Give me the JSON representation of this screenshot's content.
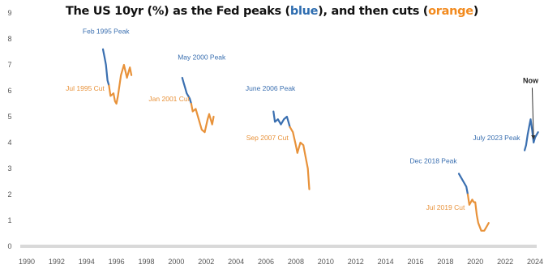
{
  "title": {
    "prefix": "The US 10yr (%) as the Fed peaks (",
    "blue_word": "blue",
    "middle": "), and then cuts (",
    "orange_word": "orange",
    "suffix": ")"
  },
  "colors": {
    "blue": "#3a6fb0",
    "orange": "#e8923a",
    "axis": "#d9d9d9",
    "text": "#555555"
  },
  "chart_data": {
    "type": "line",
    "title": "The US 10yr (%) as the Fed peaks (blue), and then cuts (orange)",
    "xlim": [
      1990,
      2024
    ],
    "ylim": [
      0,
      9
    ],
    "x_ticks": [
      "1990",
      "1992",
      "1994",
      "1996",
      "1998",
      "2000",
      "2002",
      "2004",
      "2006",
      "2008",
      "2010",
      "2012",
      "2014",
      "2016",
      "2018",
      "2020",
      "2022",
      "2024"
    ],
    "y_ticks": [
      "0",
      "1",
      "2",
      "3",
      "4",
      "5",
      "6",
      "7",
      "8",
      "9"
    ],
    "legend": "none",
    "grid": false,
    "series": [
      {
        "color": "blue",
        "x": [
          1995.1,
          1995.2,
          1995.3,
          1995.4,
          1995.5
        ],
        "y": [
          7.6,
          7.3,
          7.0,
          6.4,
          6.2
        ]
      },
      {
        "color": "orange",
        "x": [
          1995.5,
          1995.6,
          1995.8,
          1995.9,
          1996.0,
          1996.1,
          1996.3,
          1996.5,
          1996.7,
          1996.9,
          1997.0
        ],
        "y": [
          6.2,
          5.8,
          5.9,
          5.6,
          5.5,
          5.8,
          6.6,
          7.0,
          6.5,
          6.9,
          6.6
        ]
      },
      {
        "color": "blue",
        "x": [
          2000.4,
          2000.5,
          2000.6,
          2000.7,
          2000.9,
          2001.0
        ],
        "y": [
          6.5,
          6.3,
          6.1,
          5.9,
          5.7,
          5.5
        ]
      },
      {
        "color": "orange",
        "x": [
          2001.0,
          2001.1,
          2001.3,
          2001.5,
          2001.7,
          2001.9,
          2002.1,
          2002.2,
          2002.4,
          2002.5
        ],
        "y": [
          5.5,
          5.2,
          5.3,
          4.9,
          4.5,
          4.4,
          4.9,
          5.1,
          4.7,
          5.0
        ]
      },
      {
        "color": "blue",
        "x": [
          2006.5,
          2006.6,
          2006.8,
          2007.0,
          2007.2,
          2007.4,
          2007.6
        ],
        "y": [
          5.2,
          4.8,
          4.9,
          4.7,
          4.9,
          5.0,
          4.6
        ]
      },
      {
        "color": "orange",
        "x": [
          2007.6,
          2007.8,
          2008.0,
          2008.1,
          2008.3,
          2008.5,
          2008.6,
          2008.8,
          2008.9
        ],
        "y": [
          4.6,
          4.4,
          3.9,
          3.6,
          4.0,
          3.9,
          3.6,
          3.0,
          2.2
        ]
      },
      {
        "color": "blue",
        "x": [
          2018.9,
          2019.0,
          2019.2,
          2019.4,
          2019.5
        ],
        "y": [
          2.8,
          2.7,
          2.5,
          2.3,
          2.0
        ]
      },
      {
        "color": "orange",
        "x": [
          2019.5,
          2019.6,
          2019.8,
          2019.9,
          2020.0,
          2020.1,
          2020.2,
          2020.4,
          2020.6,
          2020.8,
          2020.9
        ],
        "y": [
          2.0,
          1.6,
          1.8,
          1.7,
          1.7,
          1.2,
          0.9,
          0.6,
          0.6,
          0.8,
          0.9
        ]
      },
      {
        "color": "blue",
        "x": [
          2023.3,
          2023.4,
          2023.5,
          2023.6,
          2023.7,
          2023.8,
          2023.9,
          2024.0,
          2024.1,
          2024.2
        ],
        "y": [
          3.7,
          3.9,
          4.3,
          4.6,
          4.9,
          4.5,
          4.0,
          4.2,
          4.3,
          4.4
        ]
      }
    ],
    "annotations": [
      {
        "text": "Feb 1995 Peak",
        "color": "blue",
        "x": 1995.3,
        "y": 8.2,
        "anchor": "middle"
      },
      {
        "text": "Jul 1995 Cut",
        "color": "orange",
        "x": 1995.2,
        "y": 6.0,
        "anchor": "end"
      },
      {
        "text": "May 2000 Peak",
        "color": "blue",
        "x": 2001.7,
        "y": 7.2,
        "anchor": "middle"
      },
      {
        "text": "Jan 2001 Cut",
        "color": "orange",
        "x": 2000.9,
        "y": 5.6,
        "anchor": "end"
      },
      {
        "text": "June 2006 Peak",
        "color": "blue",
        "x": 2006.3,
        "y": 6.0,
        "anchor": "middle"
      },
      {
        "text": "Sep 2007 Cut",
        "color": "orange",
        "x": 2007.5,
        "y": 4.1,
        "anchor": "end"
      },
      {
        "text": "Dec 2018 Peak",
        "color": "blue",
        "x": 2017.2,
        "y": 3.2,
        "anchor": "middle"
      },
      {
        "text": "Jul 2019 Cut",
        "color": "orange",
        "x": 2019.3,
        "y": 1.4,
        "anchor": "end"
      },
      {
        "text": "July 2023 Peak",
        "color": "blue",
        "x": 2023.0,
        "y": 4.1,
        "anchor": "end"
      },
      {
        "text": "Now",
        "color": "black",
        "x": 2023.7,
        "y": 6.3,
        "anchor": "middle"
      }
    ]
  }
}
